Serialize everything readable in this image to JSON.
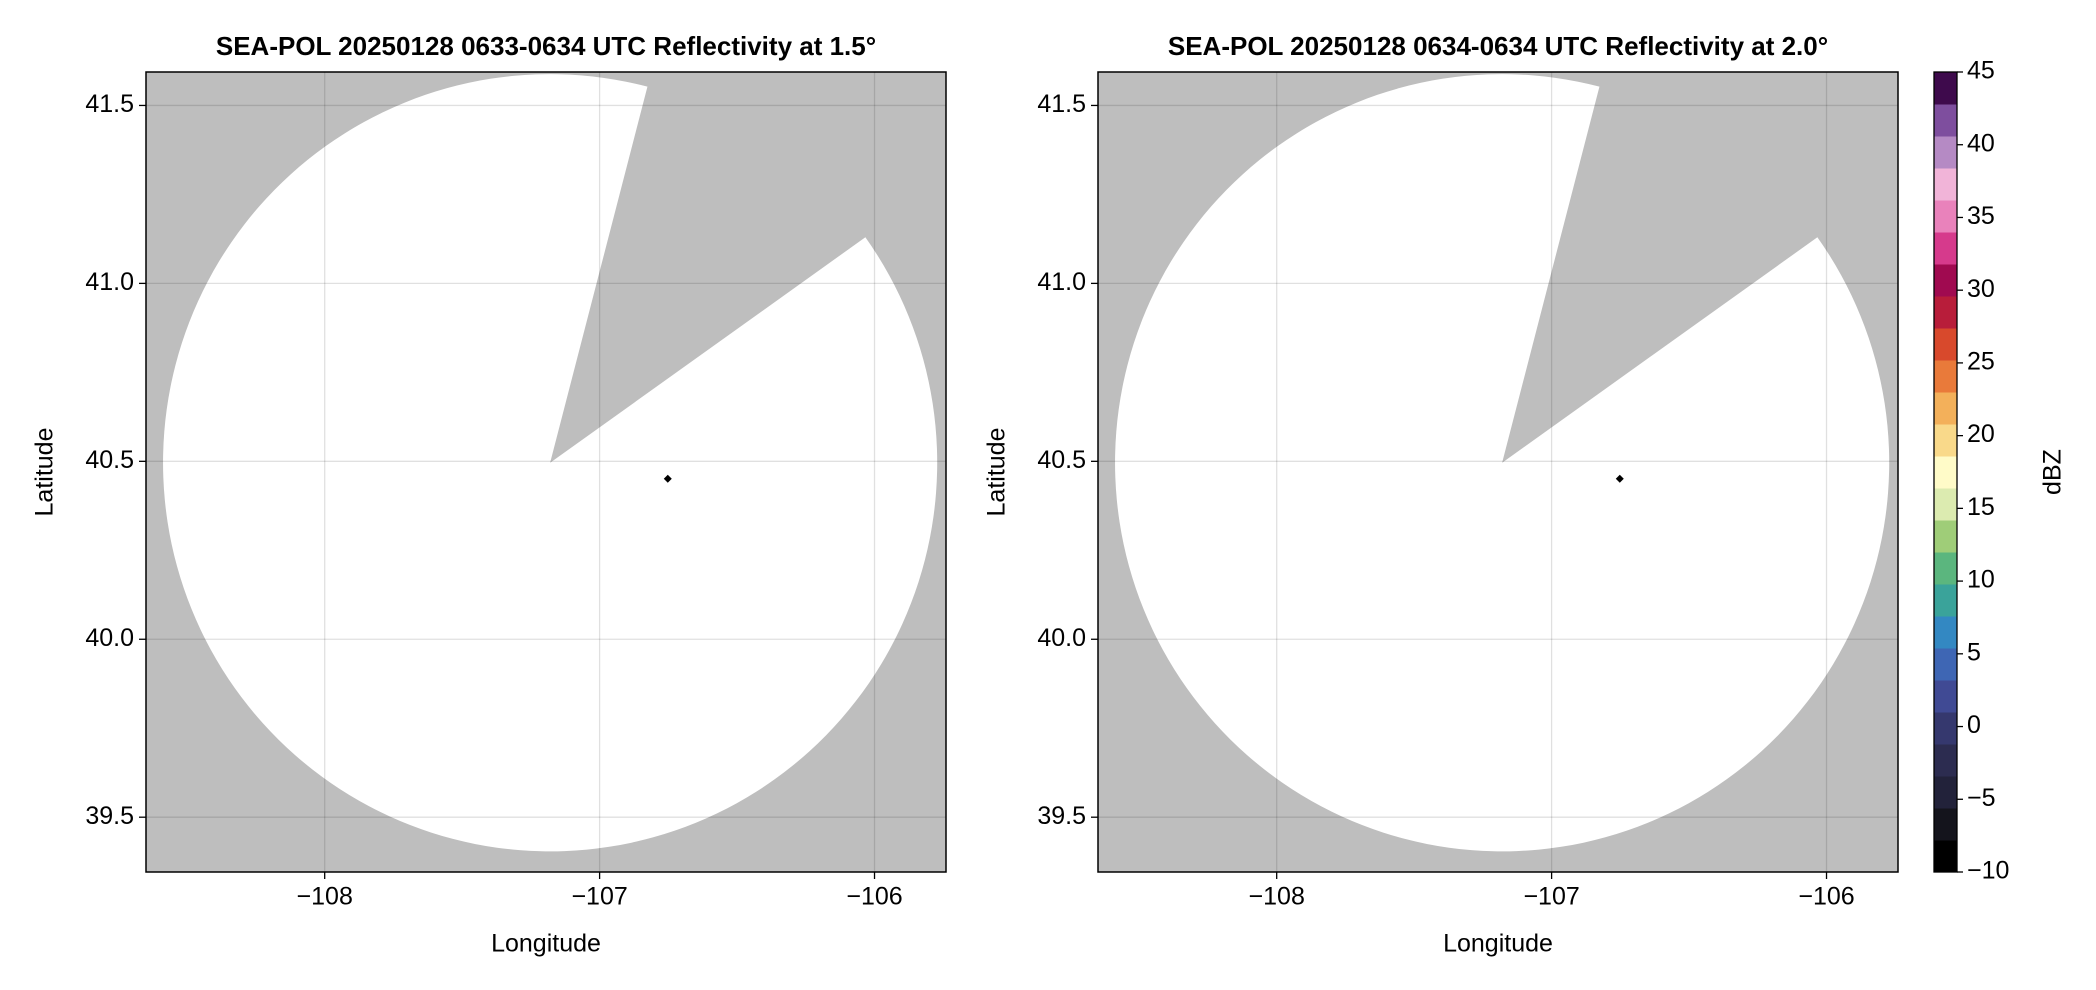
{
  "chart_data": [
    {
      "type": "radar",
      "title": "SEA-POL 20250128 0633-0634 UTC Reflectivity at 1.5°",
      "xlabel": "Longitude",
      "ylabel": "Latitude",
      "xlim": [
        -108.65,
        -105.74
      ],
      "ylim": [
        39.346,
        41.594
      ],
      "xticks": [
        {
          "value": -108,
          "label": "−108"
        },
        {
          "value": -107,
          "label": "−107"
        },
        {
          "value": -106,
          "label": "−106"
        }
      ],
      "yticks": [
        39.5,
        {
          "value": 40,
          "label": "40.0"
        },
        40.5,
        {
          "value": 41,
          "label": "41.0"
        },
        41.5
      ],
      "grid": true,
      "background": "#bebebe",
      "coverage_color": "#ffffff",
      "coverage": {
        "center": {
          "lon": -107.18,
          "lat": 40.496
        },
        "radius_lon": 1.408,
        "radius_lat": 1.092,
        "gap": {
          "lon": [
            -106.835,
            -106.058
          ],
          "lat": [
            41.526,
            41.116
          ]
        }
      },
      "site": {
        "lon": -106.752,
        "lat": 40.451
      }
    },
    {
      "type": "radar",
      "title": "SEA-POL 20250128 0634-0634 UTC Reflectivity at 2.0°",
      "xlabel": "Longitude",
      "ylabel": "Latitude",
      "xlim": [
        -108.65,
        -105.74
      ],
      "ylim": [
        39.346,
        41.594
      ],
      "xticks": [
        {
          "value": -108,
          "label": "−108"
        },
        {
          "value": -107,
          "label": "−107"
        },
        {
          "value": -106,
          "label": "−106"
        }
      ],
      "yticks": [
        39.5,
        {
          "value": 40,
          "label": "40.0"
        },
        40.5,
        {
          "value": 41,
          "label": "41.0"
        },
        41.5
      ],
      "grid": true,
      "background": "#bebebe",
      "coverage_color": "#ffffff",
      "coverage": {
        "center": {
          "lon": -107.18,
          "lat": 40.496
        },
        "radius_lon": 1.408,
        "radius_lat": 1.092,
        "gap": {
          "lon": [
            -106.835,
            -106.058
          ],
          "lat": [
            41.526,
            41.116
          ]
        }
      },
      "site": {
        "lon": -106.752,
        "lat": 40.451
      }
    }
  ],
  "colorbar": {
    "label": "dBZ",
    "lim": [
      -10,
      45
    ],
    "ticks": [
      {
        "value": -10,
        "label": "−10"
      },
      {
        "value": -5,
        "label": "−5"
      },
      0,
      5,
      10,
      15,
      20,
      25,
      30,
      35,
      40,
      45
    ],
    "colors": [
      "#000000",
      "#14141c",
      "#22223a",
      "#2c2c50",
      "#35386e",
      "#404a94",
      "#3e66b4",
      "#3388c2",
      "#3aa39a",
      "#5bb67e",
      "#9fcd78",
      "#dcebb0",
      "#fffbc8",
      "#f9d98a",
      "#f3b05a",
      "#e97a3a",
      "#d8492c",
      "#b81d3a",
      "#a00a50",
      "#d63a8c",
      "#e982bb",
      "#f1b4d8",
      "#b58ac4",
      "#7e4e9e",
      "#3e0a4c"
    ]
  }
}
